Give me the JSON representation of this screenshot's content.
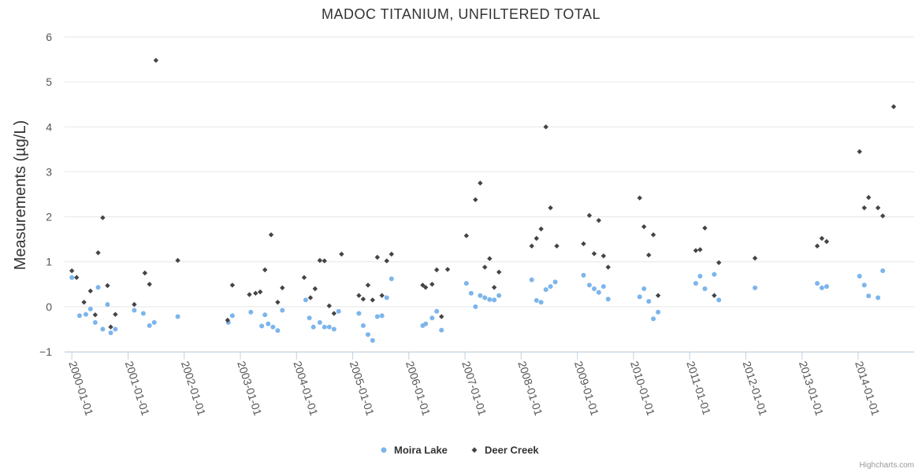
{
  "chart_data": {
    "type": "scatter",
    "title": "MADOC TITANIUM, UNFILTERED TOTAL",
    "ylabel": "Measurements (µg/L)",
    "xlabel": "",
    "ylim": [
      -1,
      6
    ],
    "yticks": [
      -1,
      0,
      1,
      2,
      3,
      4,
      5,
      6
    ],
    "xlim": [
      "1999-11-15",
      "2014-12-31"
    ],
    "xticks": [
      "2000-01-01",
      "2001-01-01",
      "2002-01-01",
      "2003-01-01",
      "2004-01-01",
      "2005-01-01",
      "2006-01-01",
      "2007-01-01",
      "2008-01-01",
      "2009-01-01",
      "2010-01-01",
      "2011-01-01",
      "2012-01-01",
      "2013-01-01",
      "2014-01-01"
    ],
    "grid": true,
    "legend_position": "bottom-center",
    "credits": "Highcharts.com",
    "series": [
      {
        "name": "Moira Lake",
        "color": "#7cb5ec",
        "marker": "circle",
        "points": [
          [
            "2000-01-01",
            0.65
          ],
          [
            "2000-02-20",
            -0.2
          ],
          [
            "2000-04-01",
            -0.17
          ],
          [
            "2000-05-01",
            -0.05
          ],
          [
            "2000-06-01",
            -0.35
          ],
          [
            "2000-06-20",
            0.43
          ],
          [
            "2000-07-20",
            -0.5
          ],
          [
            "2000-08-20",
            0.05
          ],
          [
            "2000-09-10",
            -0.58
          ],
          [
            "2000-10-10",
            -0.5
          ],
          [
            "2001-02-10",
            -0.08
          ],
          [
            "2001-04-10",
            -0.15
          ],
          [
            "2001-05-20",
            -0.42
          ],
          [
            "2001-06-20",
            -0.35
          ],
          [
            "2001-11-20",
            -0.22
          ],
          [
            "2002-10-15",
            -0.35
          ],
          [
            "2002-11-10",
            -0.2
          ],
          [
            "2003-03-10",
            -0.12
          ],
          [
            "2003-05-20",
            -0.43
          ],
          [
            "2003-06-10",
            -0.18
          ],
          [
            "2003-07-01",
            -0.38
          ],
          [
            "2003-08-01",
            -0.45
          ],
          [
            "2003-09-01",
            -0.53
          ],
          [
            "2003-10-01",
            -0.08
          ],
          [
            "2004-03-01",
            0.15
          ],
          [
            "2004-03-25",
            -0.25
          ],
          [
            "2004-04-20",
            -0.45
          ],
          [
            "2004-06-01",
            -0.35
          ],
          [
            "2004-07-01",
            -0.45
          ],
          [
            "2004-08-01",
            -0.45
          ],
          [
            "2004-09-01",
            -0.5
          ],
          [
            "2004-10-01",
            -0.1
          ],
          [
            "2005-02-10",
            -0.15
          ],
          [
            "2005-03-10",
            -0.42
          ],
          [
            "2005-04-10",
            -0.62
          ],
          [
            "2005-05-10",
            -0.75
          ],
          [
            "2005-06-10",
            -0.22
          ],
          [
            "2005-07-10",
            -0.2
          ],
          [
            "2005-08-10",
            0.2
          ],
          [
            "2005-09-10",
            0.62
          ],
          [
            "2006-04-01",
            -0.42
          ],
          [
            "2006-04-20",
            -0.38
          ],
          [
            "2006-06-01",
            -0.25
          ],
          [
            "2006-07-01",
            -0.1
          ],
          [
            "2006-08-01",
            -0.52
          ],
          [
            "2007-01-10",
            0.52
          ],
          [
            "2007-02-10",
            0.3
          ],
          [
            "2007-03-10",
            0.0
          ],
          [
            "2007-04-10",
            0.25
          ],
          [
            "2007-05-10",
            0.2
          ],
          [
            "2007-06-10",
            0.16
          ],
          [
            "2007-07-10",
            0.15
          ],
          [
            "2007-08-10",
            0.25
          ],
          [
            "2008-03-10",
            0.6
          ],
          [
            "2008-04-10",
            0.14
          ],
          [
            "2008-05-10",
            0.1
          ],
          [
            "2008-06-10",
            0.38
          ],
          [
            "2008-07-10",
            0.45
          ],
          [
            "2008-08-10",
            0.55
          ],
          [
            "2009-02-10",
            0.7
          ],
          [
            "2009-03-20",
            0.48
          ],
          [
            "2009-04-20",
            0.4
          ],
          [
            "2009-05-20",
            0.32
          ],
          [
            "2009-06-20",
            0.45
          ],
          [
            "2009-07-20",
            0.17
          ],
          [
            "2010-02-10",
            0.22
          ],
          [
            "2010-03-10",
            0.4
          ],
          [
            "2010-04-10",
            0.12
          ],
          [
            "2010-05-10",
            -0.27
          ],
          [
            "2010-06-10",
            -0.12
          ],
          [
            "2011-02-10",
            0.52
          ],
          [
            "2011-03-10",
            0.68
          ],
          [
            "2011-04-10",
            0.4
          ],
          [
            "2011-06-10",
            0.72
          ],
          [
            "2011-07-10",
            0.15
          ],
          [
            "2012-03-01",
            0.42
          ],
          [
            "2013-04-10",
            0.52
          ],
          [
            "2013-05-10",
            0.42
          ],
          [
            "2013-06-10",
            0.45
          ],
          [
            "2014-01-10",
            0.68
          ],
          [
            "2014-02-10",
            0.48
          ],
          [
            "2014-03-10",
            0.24
          ],
          [
            "2014-05-10",
            0.2
          ],
          [
            "2014-06-10",
            0.8
          ]
        ]
      },
      {
        "name": "Deer Creek",
        "color": "#434348",
        "marker": "diamond",
        "points": [
          [
            "2000-01-01",
            0.8
          ],
          [
            "2000-02-01",
            0.65
          ],
          [
            "2000-03-20",
            0.1
          ],
          [
            "2000-05-01",
            0.35
          ],
          [
            "2000-06-01",
            -0.18
          ],
          [
            "2000-06-20",
            1.2
          ],
          [
            "2000-07-20",
            1.98
          ],
          [
            "2000-08-20",
            0.47
          ],
          [
            "2000-09-10",
            -0.45
          ],
          [
            "2000-10-10",
            -0.17
          ],
          [
            "2001-02-10",
            0.05
          ],
          [
            "2001-04-20",
            0.75
          ],
          [
            "2001-05-20",
            0.5
          ],
          [
            "2001-07-01",
            5.48
          ],
          [
            "2001-11-20",
            1.03
          ],
          [
            "2002-10-10",
            -0.3
          ],
          [
            "2002-11-10",
            0.48
          ],
          [
            "2003-03-01",
            0.27
          ],
          [
            "2003-04-10",
            0.3
          ],
          [
            "2003-05-10",
            0.33
          ],
          [
            "2003-06-10",
            0.82
          ],
          [
            "2003-07-20",
            1.6
          ],
          [
            "2003-09-01",
            0.1
          ],
          [
            "2003-10-01",
            0.42
          ],
          [
            "2004-02-20",
            0.65
          ],
          [
            "2004-04-01",
            0.2
          ],
          [
            "2004-05-01",
            0.4
          ],
          [
            "2004-06-01",
            1.03
          ],
          [
            "2004-07-01",
            1.02
          ],
          [
            "2004-08-01",
            0.02
          ],
          [
            "2004-09-01",
            -0.15
          ],
          [
            "2004-10-20",
            1.17
          ],
          [
            "2005-02-10",
            0.25
          ],
          [
            "2005-03-10",
            0.17
          ],
          [
            "2005-04-10",
            0.48
          ],
          [
            "2005-05-10",
            0.15
          ],
          [
            "2005-06-10",
            1.1
          ],
          [
            "2005-07-10",
            0.25
          ],
          [
            "2005-08-10",
            1.02
          ],
          [
            "2005-09-10",
            1.17
          ],
          [
            "2006-04-01",
            0.48
          ],
          [
            "2006-04-20",
            0.43
          ],
          [
            "2006-06-01",
            0.5
          ],
          [
            "2006-07-01",
            0.82
          ],
          [
            "2006-08-01",
            -0.22
          ],
          [
            "2006-09-10",
            0.83
          ],
          [
            "2007-01-10",
            1.58
          ],
          [
            "2007-03-10",
            2.38
          ],
          [
            "2007-04-10",
            2.75
          ],
          [
            "2007-05-10",
            0.88
          ],
          [
            "2007-06-10",
            1.07
          ],
          [
            "2007-07-10",
            0.43
          ],
          [
            "2007-08-10",
            0.77
          ],
          [
            "2008-03-10",
            1.35
          ],
          [
            "2008-04-10",
            1.52
          ],
          [
            "2008-05-10",
            1.73
          ],
          [
            "2008-06-10",
            4.0
          ],
          [
            "2008-07-10",
            2.2
          ],
          [
            "2008-08-20",
            1.35
          ],
          [
            "2009-02-10",
            1.4
          ],
          [
            "2009-03-20",
            2.03
          ],
          [
            "2009-04-20",
            1.18
          ],
          [
            "2009-05-20",
            1.92
          ],
          [
            "2009-06-20",
            1.13
          ],
          [
            "2009-07-20",
            0.88
          ],
          [
            "2010-02-10",
            2.42
          ],
          [
            "2010-03-10",
            1.78
          ],
          [
            "2010-04-10",
            1.15
          ],
          [
            "2010-05-10",
            1.6
          ],
          [
            "2010-06-10",
            0.25
          ],
          [
            "2011-02-10",
            1.25
          ],
          [
            "2011-03-10",
            1.27
          ],
          [
            "2011-04-10",
            1.75
          ],
          [
            "2011-06-10",
            0.25
          ],
          [
            "2011-07-10",
            0.98
          ],
          [
            "2012-03-01",
            1.08
          ],
          [
            "2013-04-10",
            1.35
          ],
          [
            "2013-05-10",
            1.52
          ],
          [
            "2013-06-10",
            1.45
          ],
          [
            "2014-01-10",
            3.45
          ],
          [
            "2014-02-10",
            2.2
          ],
          [
            "2014-03-10",
            2.43
          ],
          [
            "2014-05-10",
            2.2
          ],
          [
            "2014-06-10",
            2.02
          ],
          [
            "2014-08-20",
            4.45
          ]
        ]
      }
    ]
  }
}
